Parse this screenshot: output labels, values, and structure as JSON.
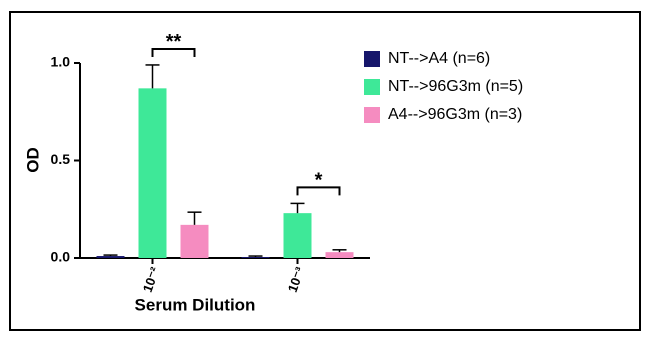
{
  "chart_data": {
    "type": "bar",
    "xlabel": "Serum Dilution",
    "ylabel": "OD",
    "categories": [
      "10⁻²",
      "10⁻³"
    ],
    "series": [
      {
        "name": "NT-->A4 (n=6)",
        "color": "#16166b",
        "values": [
          0.01,
          0.005
        ],
        "errors": [
          0.005,
          0.005
        ]
      },
      {
        "name": "NT-->96G3m (n=5)",
        "color": "#3ee898",
        "values": [
          0.87,
          0.23
        ],
        "errors": [
          0.12,
          0.05
        ]
      },
      {
        "name": "A4-->96G3m (n=3)",
        "color": "#f58cc0",
        "values": [
          0.17,
          0.03
        ],
        "errors": [
          0.065,
          0.012
        ]
      }
    ],
    "annotations": [
      "**",
      "*"
    ],
    "ylim": [
      0,
      1.0
    ],
    "yticks": [
      {
        "value": 0,
        "label": "0.0"
      },
      0.5,
      {
        "value": 1,
        "label": "1.0"
      }
    ]
  }
}
